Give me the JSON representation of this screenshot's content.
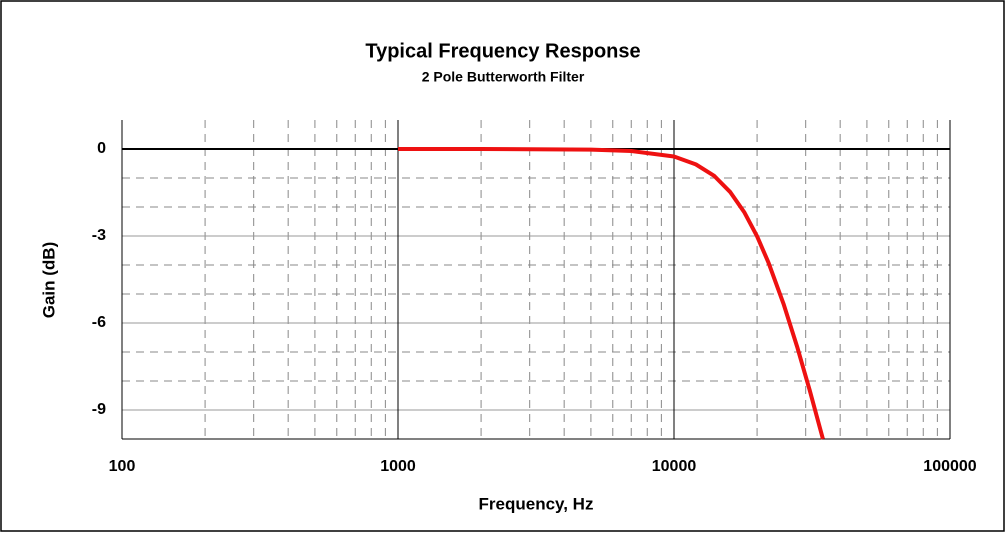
{
  "chart_data": {
    "type": "line",
    "title": "Typical Frequency Response",
    "subtitle": "2 Pole Butterworth Filter",
    "x_label": "Frequency, Hz",
    "y_label": "Gain (dB)",
    "x_scale": "log",
    "xlim": [
      100,
      100000
    ],
    "xticks": [
      100,
      1000,
      10000,
      100000
    ],
    "xminorticks": [
      200,
      300,
      400,
      500,
      600,
      700,
      800,
      900,
      2000,
      3000,
      4000,
      5000,
      6000,
      7000,
      8000,
      9000,
      20000,
      30000,
      40000,
      50000,
      60000,
      70000,
      80000,
      90000
    ],
    "ylim": [
      -10,
      1
    ],
    "yticks": [
      0,
      -3,
      -6,
      -9
    ],
    "yminorticks": [
      -1,
      -2,
      -4,
      -5,
      -7,
      -8,
      -10
    ],
    "grid": true,
    "x": [
      1000,
      2000,
      3000,
      5000,
      7000,
      10000,
      12000,
      14000,
      16000,
      18000,
      20000,
      22000,
      25000,
      28000,
      31000,
      34641
    ],
    "series": [
      {
        "name": "Gain",
        "color": "#ee1111",
        "values": [
          0,
          0,
          -0.01,
          -0.02,
          -0.07,
          -0.26,
          -0.53,
          -0.93,
          -1.49,
          -2.19,
          -3.01,
          -3.92,
          -5.37,
          -6.85,
          -8.31,
          -10
        ]
      }
    ]
  }
}
